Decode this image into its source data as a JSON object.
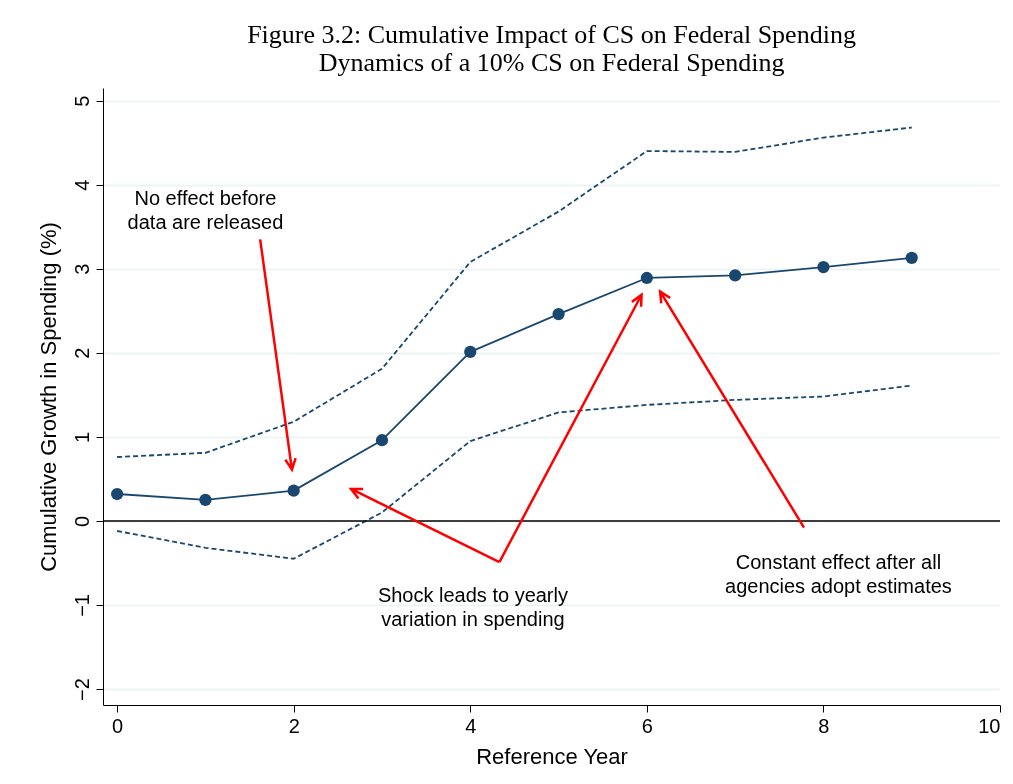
{
  "chart_data": {
    "type": "line",
    "title": "Figure 3.2: Cumulative Impact of CS on Federal Spending",
    "subtitle": "Dynamics of a 10% CS on Federal Spending",
    "xlabel": "Reference Year",
    "ylabel": "Cumulative Growth in Spending (%)",
    "x": [
      0,
      1,
      2,
      3,
      4,
      5,
      6,
      7,
      8,
      9
    ],
    "series": [
      {
        "color": "#1a476f",
        "marker": "circle",
        "line_style": "solid",
        "values": [
          0.32,
          0.25,
          0.36,
          0.96,
          2.01,
          2.46,
          2.89,
          2.92,
          3.02,
          3.13
        ]
      },
      {
        "color": "#1a476f",
        "marker": "none",
        "line_style": "dashed",
        "values": [
          0.76,
          0.81,
          1.18,
          1.81,
          3.08,
          3.68,
          4.4,
          4.39,
          4.56,
          4.68
        ]
      },
      {
        "color": "#1a476f",
        "marker": "none",
        "line_style": "dashed",
        "values": [
          -0.12,
          -0.32,
          -0.45,
          0.1,
          0.95,
          1.29,
          1.38,
          1.44,
          1.48,
          1.61
        ]
      }
    ],
    "xlim": [
      -0.16,
      10
    ],
    "xticks": [
      0,
      2,
      4,
      6,
      8,
      10
    ],
    "ylim": [
      -2.19,
      5.15
    ],
    "yticks": [
      -2,
      -1,
      0,
      1,
      2,
      3,
      4,
      5
    ],
    "grid": "y",
    "ref_lines": [
      {
        "axis": "y",
        "value": 0,
        "color": "#000000"
      }
    ],
    "annotations": [
      "No effect before\ndata are released",
      "Shock leads to yearly\nvariation in spending",
      "Constant effect after all\nagencies adopt estimates"
    ]
  }
}
